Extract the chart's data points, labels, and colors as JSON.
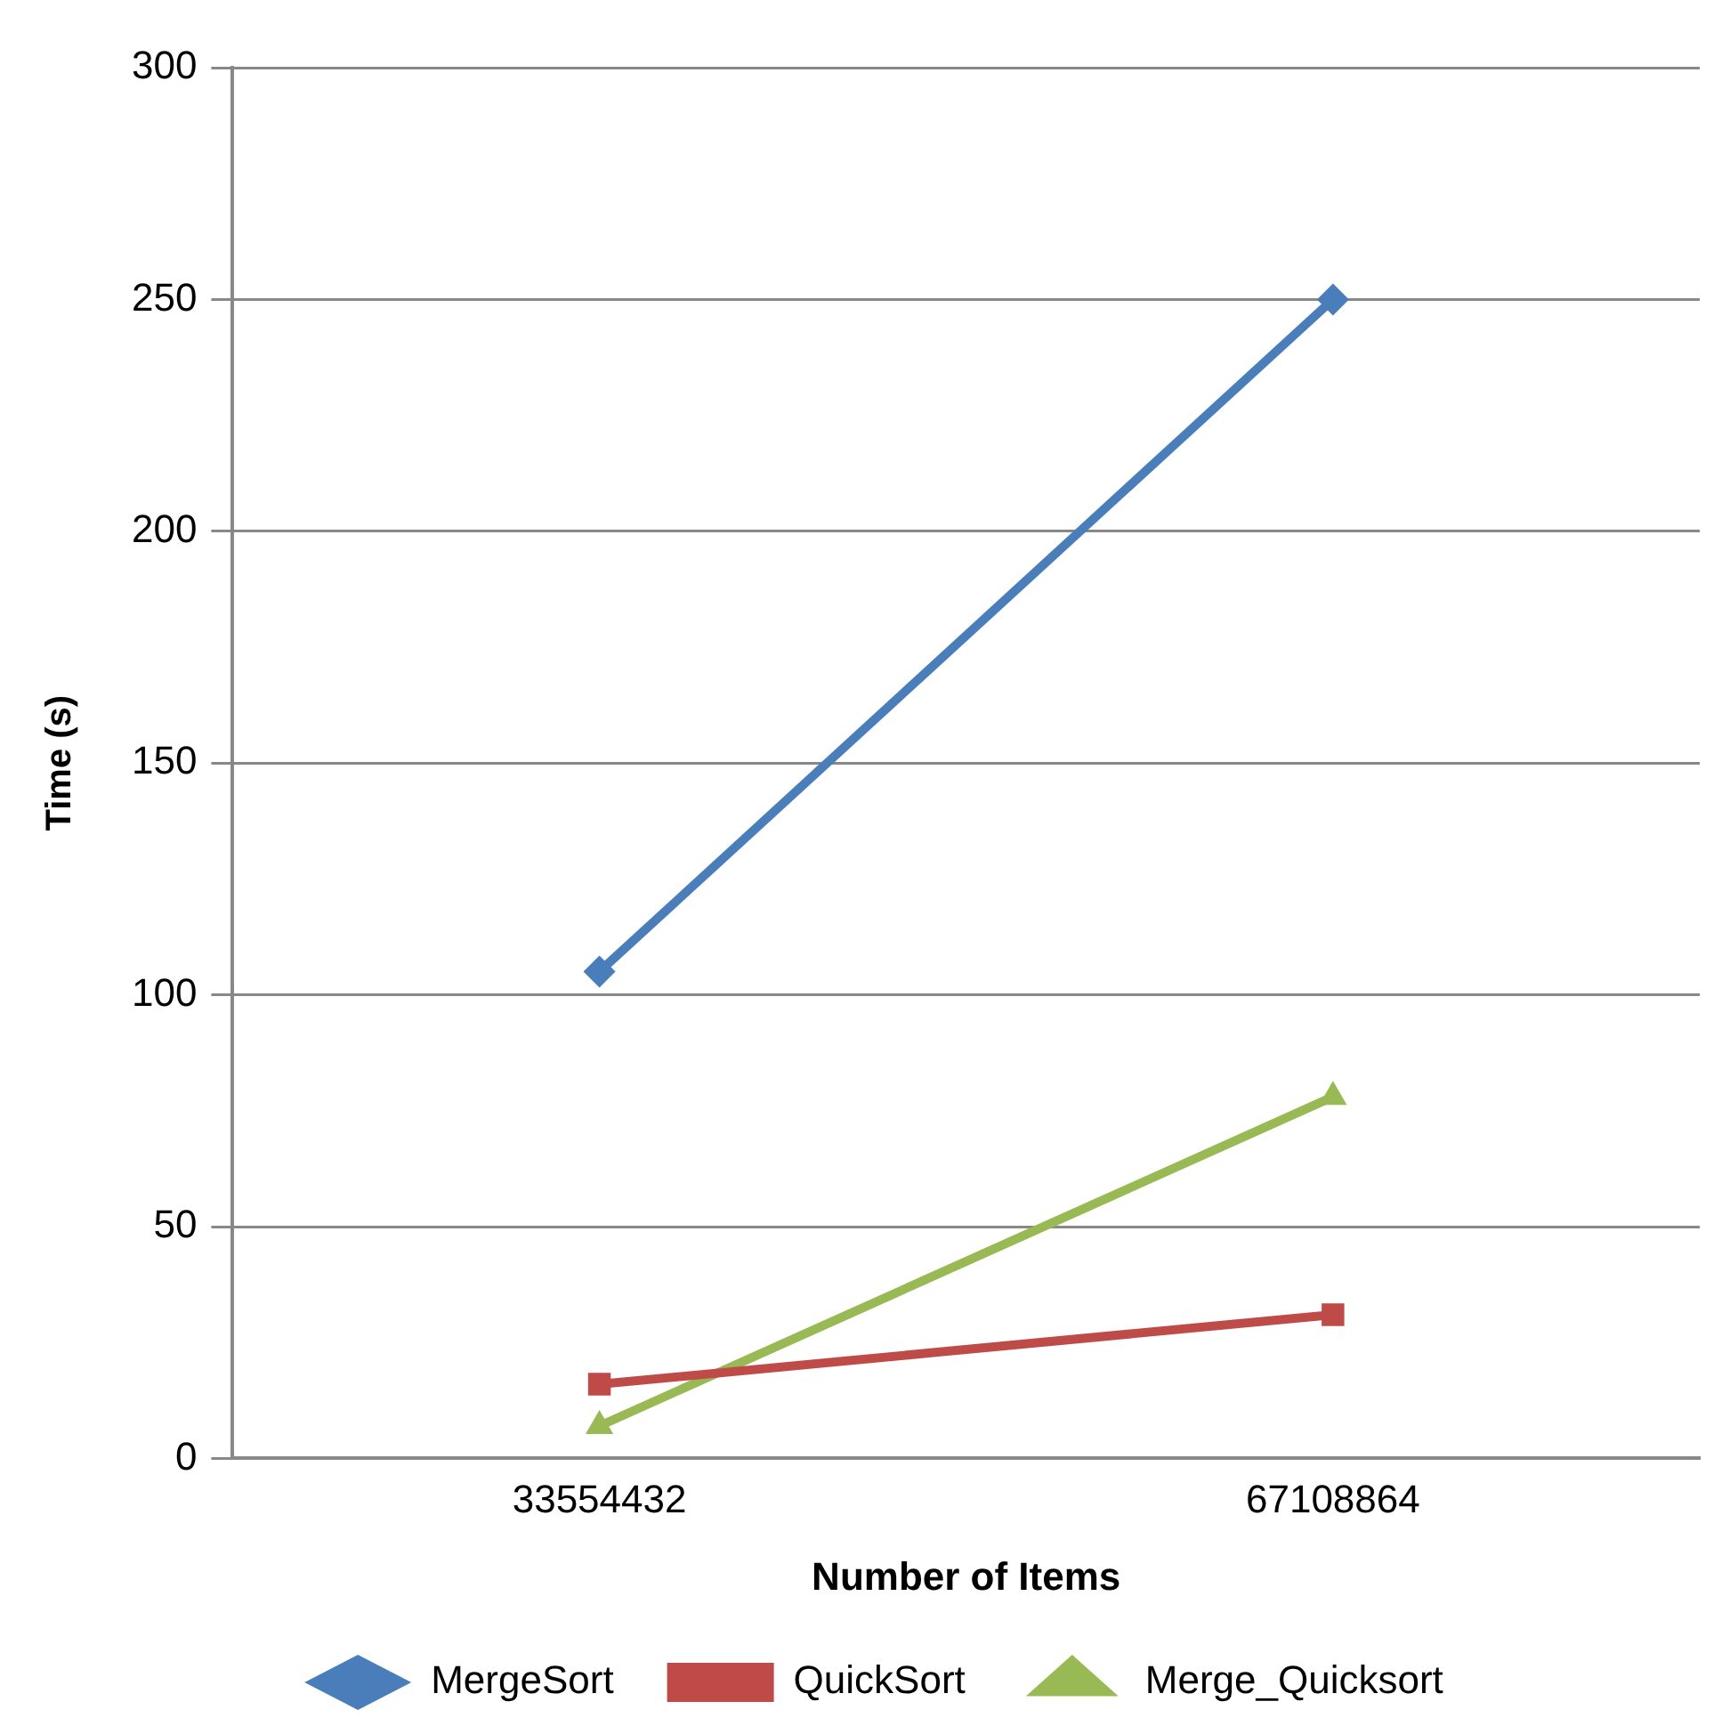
{
  "chart_data": {
    "type": "line",
    "xlabel": "Number of Items",
    "ylabel": "Time (s)",
    "categories": [
      "33554432",
      "67108864"
    ],
    "series": [
      {
        "name": "MergeSort",
        "color": "#4a7ebb",
        "values": [
          105,
          250
        ],
        "marker": "diamond"
      },
      {
        "name": "QuickSort",
        "color": "#be4b48",
        "values": [
          16,
          31
        ],
        "marker": "square"
      },
      {
        "name": "Merge_Quicksort",
        "color": "#98b954",
        "values": [
          7,
          78
        ],
        "marker": "triangle"
      }
    ],
    "ylim": [
      0,
      300
    ],
    "yticks": [
      0,
      50,
      100,
      150,
      200,
      250,
      300
    ],
    "grid": "y",
    "legend": "bottom",
    "line_style": "solid"
  }
}
